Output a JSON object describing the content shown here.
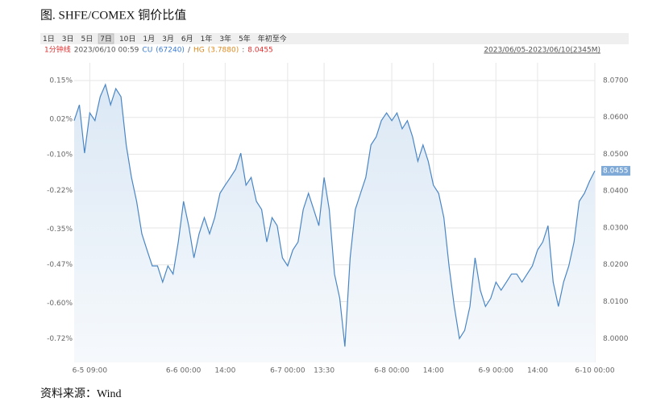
{
  "chart_data": {
    "type": "area",
    "title": "图. SHFE/COMEX 铜价比值",
    "source": "资料来源：Wind",
    "ranges": [
      "1日",
      "3日",
      "5日",
      "7日",
      "10日",
      "1月",
      "3月",
      "6月",
      "1年",
      "3年",
      "5年",
      "年初至今"
    ],
    "selected_range": "7日",
    "info": {
      "interval": "1分钟线",
      "time": "2023/06/10 00:59",
      "cu": "CU",
      "cu_price": "(67240)",
      "sep": "/",
      "hg": "HG",
      "hg_price": "(3.7880)",
      "colon": ":",
      "ratio": "8.0455",
      "span": "2023/06/05-2023/06/10(2345M)"
    },
    "x": [
      0,
      1,
      2,
      3,
      4,
      5,
      6,
      7,
      8,
      9,
      10,
      11,
      12,
      13,
      14,
      15,
      16,
      17,
      18,
      19,
      20,
      21,
      22,
      23,
      24,
      25,
      26,
      27,
      28,
      29,
      30,
      31,
      32,
      33,
      34,
      35,
      36,
      37,
      38,
      39,
      40,
      41,
      42,
      43,
      44,
      45,
      46,
      47,
      48,
      49,
      50,
      51,
      52,
      53,
      54,
      55,
      56,
      57,
      58,
      59,
      60,
      61,
      62,
      63,
      64,
      65,
      66,
      67,
      68,
      69,
      70,
      71,
      72,
      73,
      74,
      75,
      76,
      77,
      78,
      79,
      80,
      81,
      82,
      83,
      84,
      85,
      86,
      87,
      88,
      89,
      90,
      91,
      92,
      93,
      94,
      95,
      96,
      97,
      98,
      99,
      100
    ],
    "series": [
      {
        "color": "#4a86c5",
        "values": [
          8.0591,
          8.0634,
          8.0503,
          8.0612,
          8.0591,
          8.0656,
          8.0689,
          8.0634,
          8.0678,
          8.0656,
          8.0525,
          8.0437,
          8.0372,
          8.0284,
          8.024,
          8.0197,
          8.0197,
          8.0153,
          8.0197,
          8.0175,
          8.0262,
          8.0372,
          8.0306,
          8.0219,
          8.0284,
          8.0328,
          8.0284,
          8.0328,
          8.0394,
          8.0416,
          8.0437,
          8.0459,
          8.0503,
          8.0416,
          8.0437,
          8.0372,
          8.035,
          8.0262,
          8.0328,
          8.0306,
          8.0219,
          8.0197,
          8.024,
          8.0262,
          8.035,
          8.0394,
          8.035,
          8.0306,
          8.0437,
          8.035,
          8.0175,
          8.0109,
          7.9978,
          8.0219,
          8.035,
          8.0394,
          8.0437,
          8.0525,
          8.0547,
          8.0591,
          8.0612,
          8.0591,
          8.0612,
          8.0569,
          8.0591,
          8.0547,
          8.0481,
          8.0525,
          8.0481,
          8.0416,
          8.0394,
          8.0328,
          8.0197,
          8.0087,
          8.0,
          8.0022,
          8.0087,
          8.0219,
          8.0131,
          8.0087,
          8.0109,
          8.0153,
          8.0131,
          8.0153,
          8.0175,
          8.0175,
          8.0153,
          8.0175,
          8.0197,
          8.024,
          8.0262,
          8.0306,
          8.0153,
          8.0087,
          8.0153,
          8.0197,
          8.0262,
          8.0372,
          8.0394,
          8.0427,
          8.0455
        ]
      }
    ],
    "xlim": [
      0,
      100
    ],
    "xticks": [
      {
        "value": 3,
        "label": "6-5 09:00"
      },
      {
        "value": 21,
        "label": "6-6 00:00"
      },
      {
        "value": 29,
        "label": "14:00"
      },
      {
        "value": 41,
        "label": "6-7 00:00"
      },
      {
        "value": 48,
        "label": "13:30"
      },
      {
        "value": 61,
        "label": "6-8 00:00"
      },
      {
        "value": 69,
        "label": "14:00"
      },
      {
        "value": 81,
        "label": "6-9 00:00"
      },
      {
        "value": 89,
        "label": "14:00"
      },
      {
        "value": 100,
        "label": "6-10 00:00"
      }
    ],
    "ylim": [
      7.9935,
      8.0748
    ],
    "yticks": [
      {
        "value": 8.07,
        "label": "8.0700"
      },
      {
        "value": 8.06,
        "label": "8.0600"
      },
      {
        "value": 8.05,
        "label": "8.0500"
      },
      {
        "value": 8.04,
        "label": "8.0400"
      },
      {
        "value": 8.03,
        "label": "8.0300"
      },
      {
        "value": 8.02,
        "label": "8.0200"
      },
      {
        "value": 8.01,
        "label": "8.0100"
      },
      {
        "value": 8.0,
        "label": "8.0000"
      }
    ],
    "y2lim": [
      -0.8,
      0.21
    ],
    "y2ticks": [
      {
        "value": 0.15,
        "label": "0.15%"
      },
      {
        "value": 0.02,
        "label": "0.02%"
      },
      {
        "value": -0.1,
        "label": "-0.10%"
      },
      {
        "value": -0.22,
        "label": "-0.22%"
      },
      {
        "value": -0.35,
        "label": "-0.35%"
      },
      {
        "value": -0.47,
        "label": "-0.47%"
      },
      {
        "value": -0.6,
        "label": "-0.60%"
      },
      {
        "value": -0.72,
        "label": "-0.72%"
      }
    ],
    "grid": true
  }
}
